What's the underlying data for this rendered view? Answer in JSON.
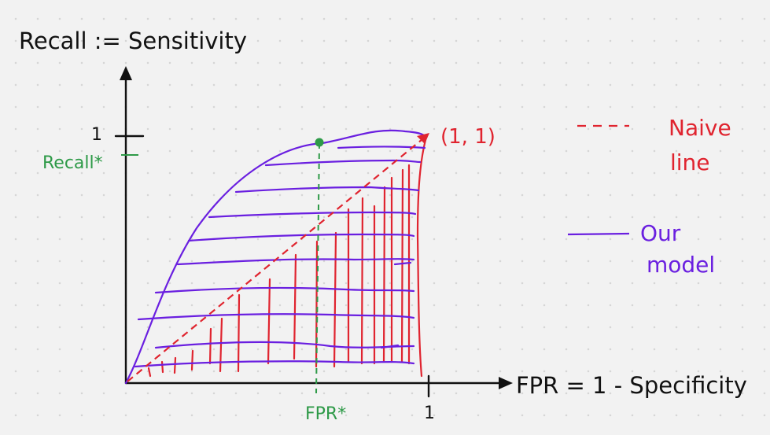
{
  "axis_labels": {
    "y": "Recall := Sensitivity",
    "x": "FPR = 1 - Specificity"
  },
  "ticks": {
    "y_one": "1",
    "x_one": "1",
    "recall_star": "Recall*",
    "fpr_star": "FPR*"
  },
  "point_label": "(1, 1)",
  "legend": {
    "naive_line_1": "Naive",
    "naive_line_2": "line",
    "model_line_1": "Our",
    "model_line_2": "model"
  },
  "colors": {
    "ink": "#111111",
    "naive": "#e0242f",
    "model": "#6a1fe0",
    "star": "#2e9a48"
  }
}
